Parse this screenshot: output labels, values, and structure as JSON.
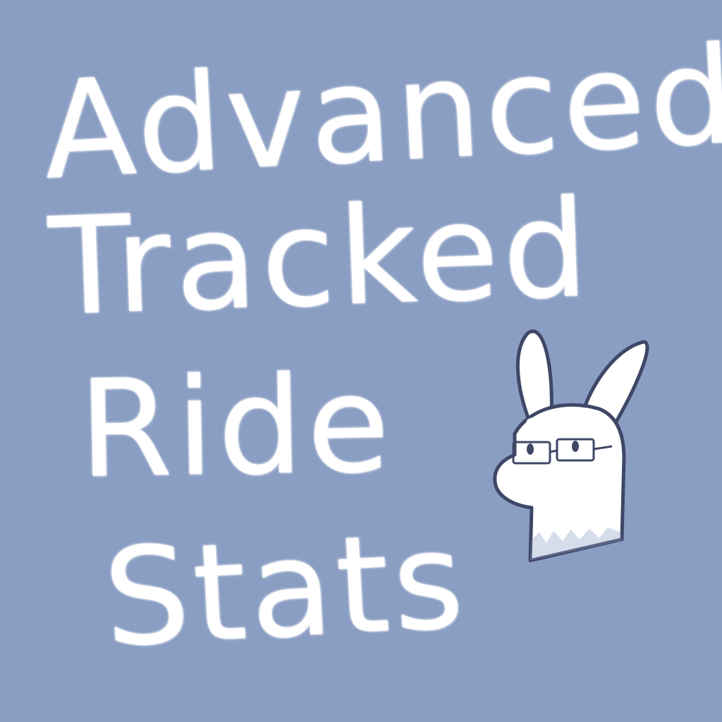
{
  "title": {
    "lines": [
      "Advanced",
      "Tracked",
      "Ride",
      "Stats"
    ]
  },
  "colors": {
    "background": "#8a9ec3",
    "text": "#ffffff",
    "outline": "#3f4766"
  },
  "illustration": {
    "icon": "bunny-with-glasses-icon"
  }
}
